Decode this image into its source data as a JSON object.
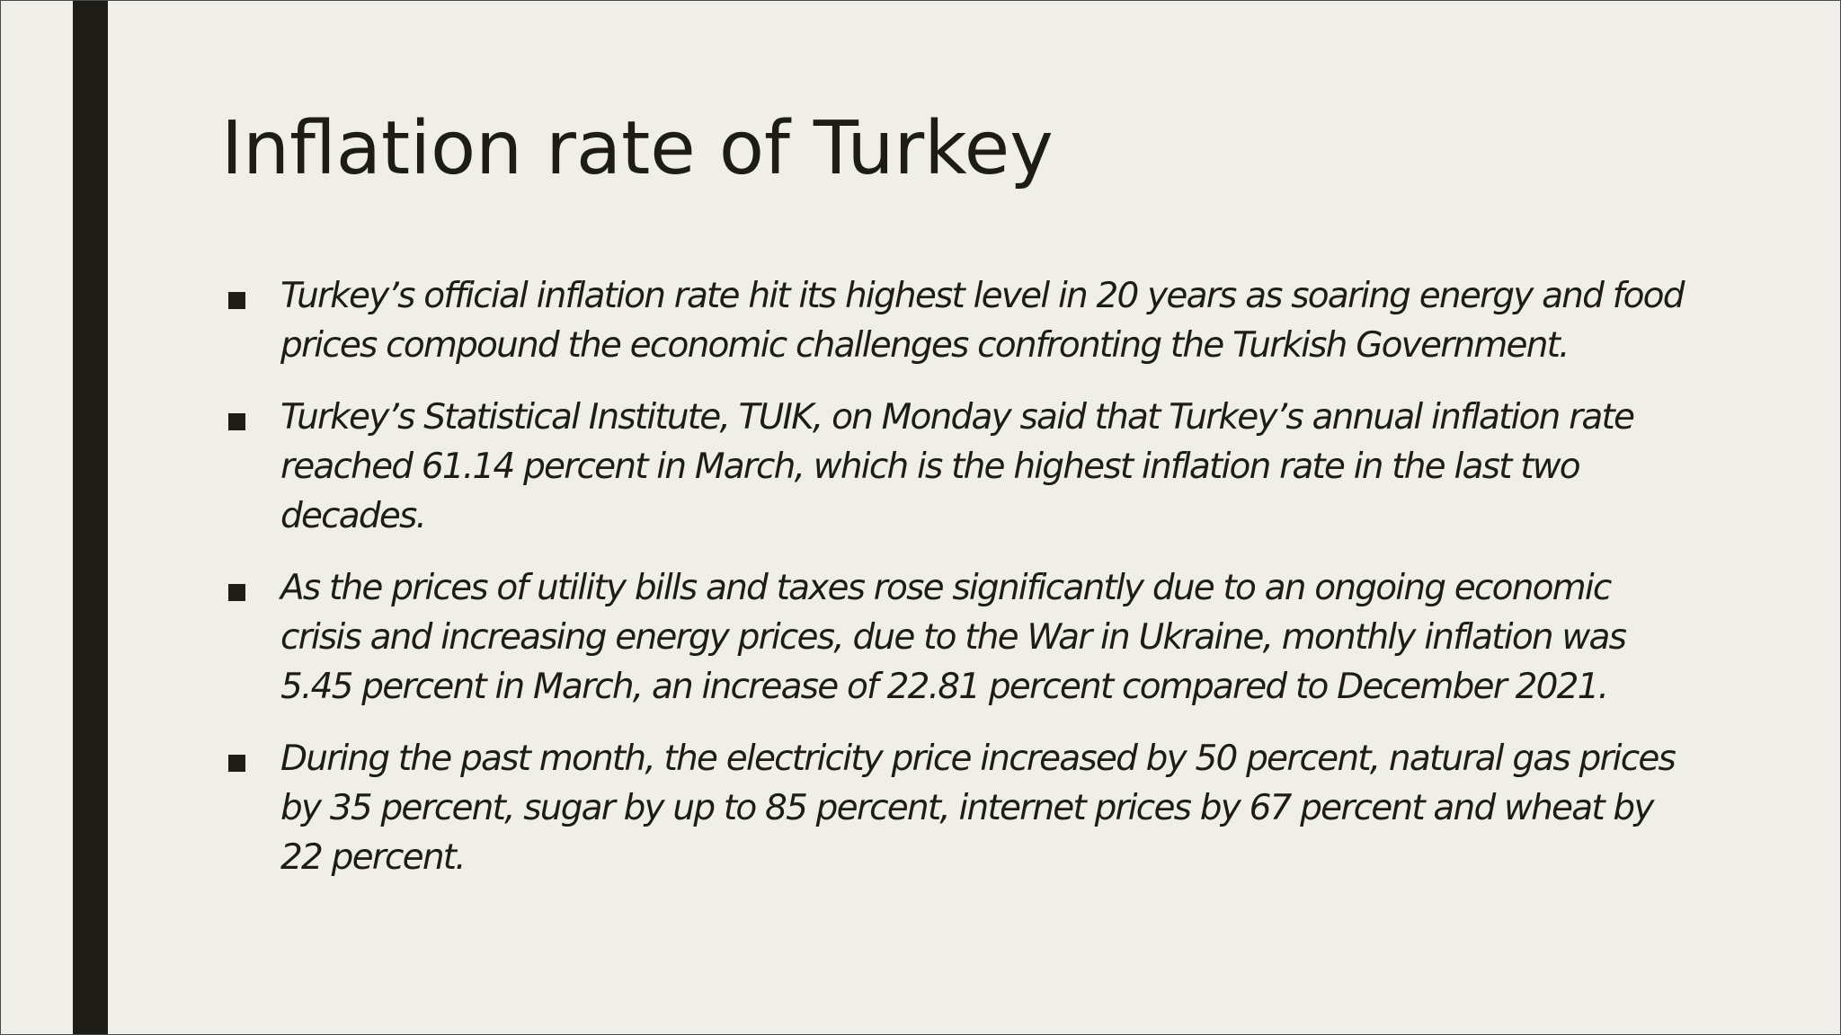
{
  "slide": {
    "title": "Inflation rate of Turkey",
    "bullets": [
      "Turkey’s official inflation rate hit its highest level in 20 years as soaring energy and food prices compound the economic challenges confronting the Turkish Government.",
      "Turkey’s Statistical Institute, TUIK, on Monday said that Turkey’s annual inflation rate reached 61.14 percent in March, which is the highest inflation rate in the last two decades.",
      "As the prices of utility bills and taxes rose significantly due to an ongoing economic crisis and increasing energy prices, due to the War in Ukraine, monthly inflation was 5.45 percent in March, an increase of 22.81 percent compared to December 2021.",
      "During the past month, the electricity price increased by 50 percent, natural gas prices by 35 percent, sugar by up to 85 percent, internet prices by 67 percent and wheat by 22 percent."
    ]
  },
  "colors": {
    "background": "#efeee8",
    "accent_bar": "#1d1c16",
    "text": "#1d1c16"
  }
}
